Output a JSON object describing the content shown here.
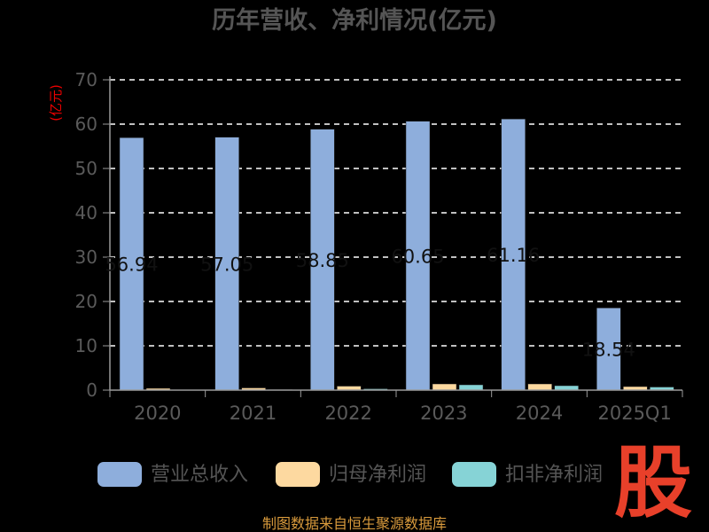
{
  "title": "历年营收、净利情况(亿元)",
  "unit_label": "(亿元)",
  "source": "制图数据来自恒生聚源数据库",
  "brand_char": "股",
  "colors": {
    "revenue": "#8eaedc",
    "net_profit": "#fdd9a0",
    "deducted_profit": "#86d3d6",
    "grid": "#ffffff",
    "axis": "#9a9a9a"
  },
  "chart_data": {
    "type": "bar",
    "title": "历年营收、净利情况(亿元)",
    "ylabel": "(亿元)",
    "xlabel": "",
    "ylim": [
      0,
      70
    ],
    "yticks": [
      0,
      10,
      20,
      30,
      40,
      50,
      60,
      70
    ],
    "grid": true,
    "legend_position": "bottom",
    "categories": [
      "2020",
      "2021",
      "2022",
      "2023",
      "2024",
      "2025Q1"
    ],
    "series": [
      {
        "name": "营业总收入",
        "values": [
          56.94,
          57.05,
          58.85,
          60.65,
          61.16,
          18.54
        ],
        "data_labels": [
          "56.94",
          "57.05",
          "58.85",
          "60.65",
          "61.16",
          "18.54"
        ]
      },
      {
        "name": "归母净利润",
        "values": [
          0.4,
          0.5,
          0.9,
          1.4,
          1.4,
          0.8
        ],
        "data_labels": [
          "",
          "",
          "",
          "",
          "",
          ""
        ]
      },
      {
        "name": "扣非净利润",
        "values": [
          0.05,
          0.15,
          0.3,
          1.2,
          1.0,
          0.7
        ],
        "data_labels": [
          "",
          "",
          "",
          "",
          "",
          ""
        ]
      }
    ]
  }
}
